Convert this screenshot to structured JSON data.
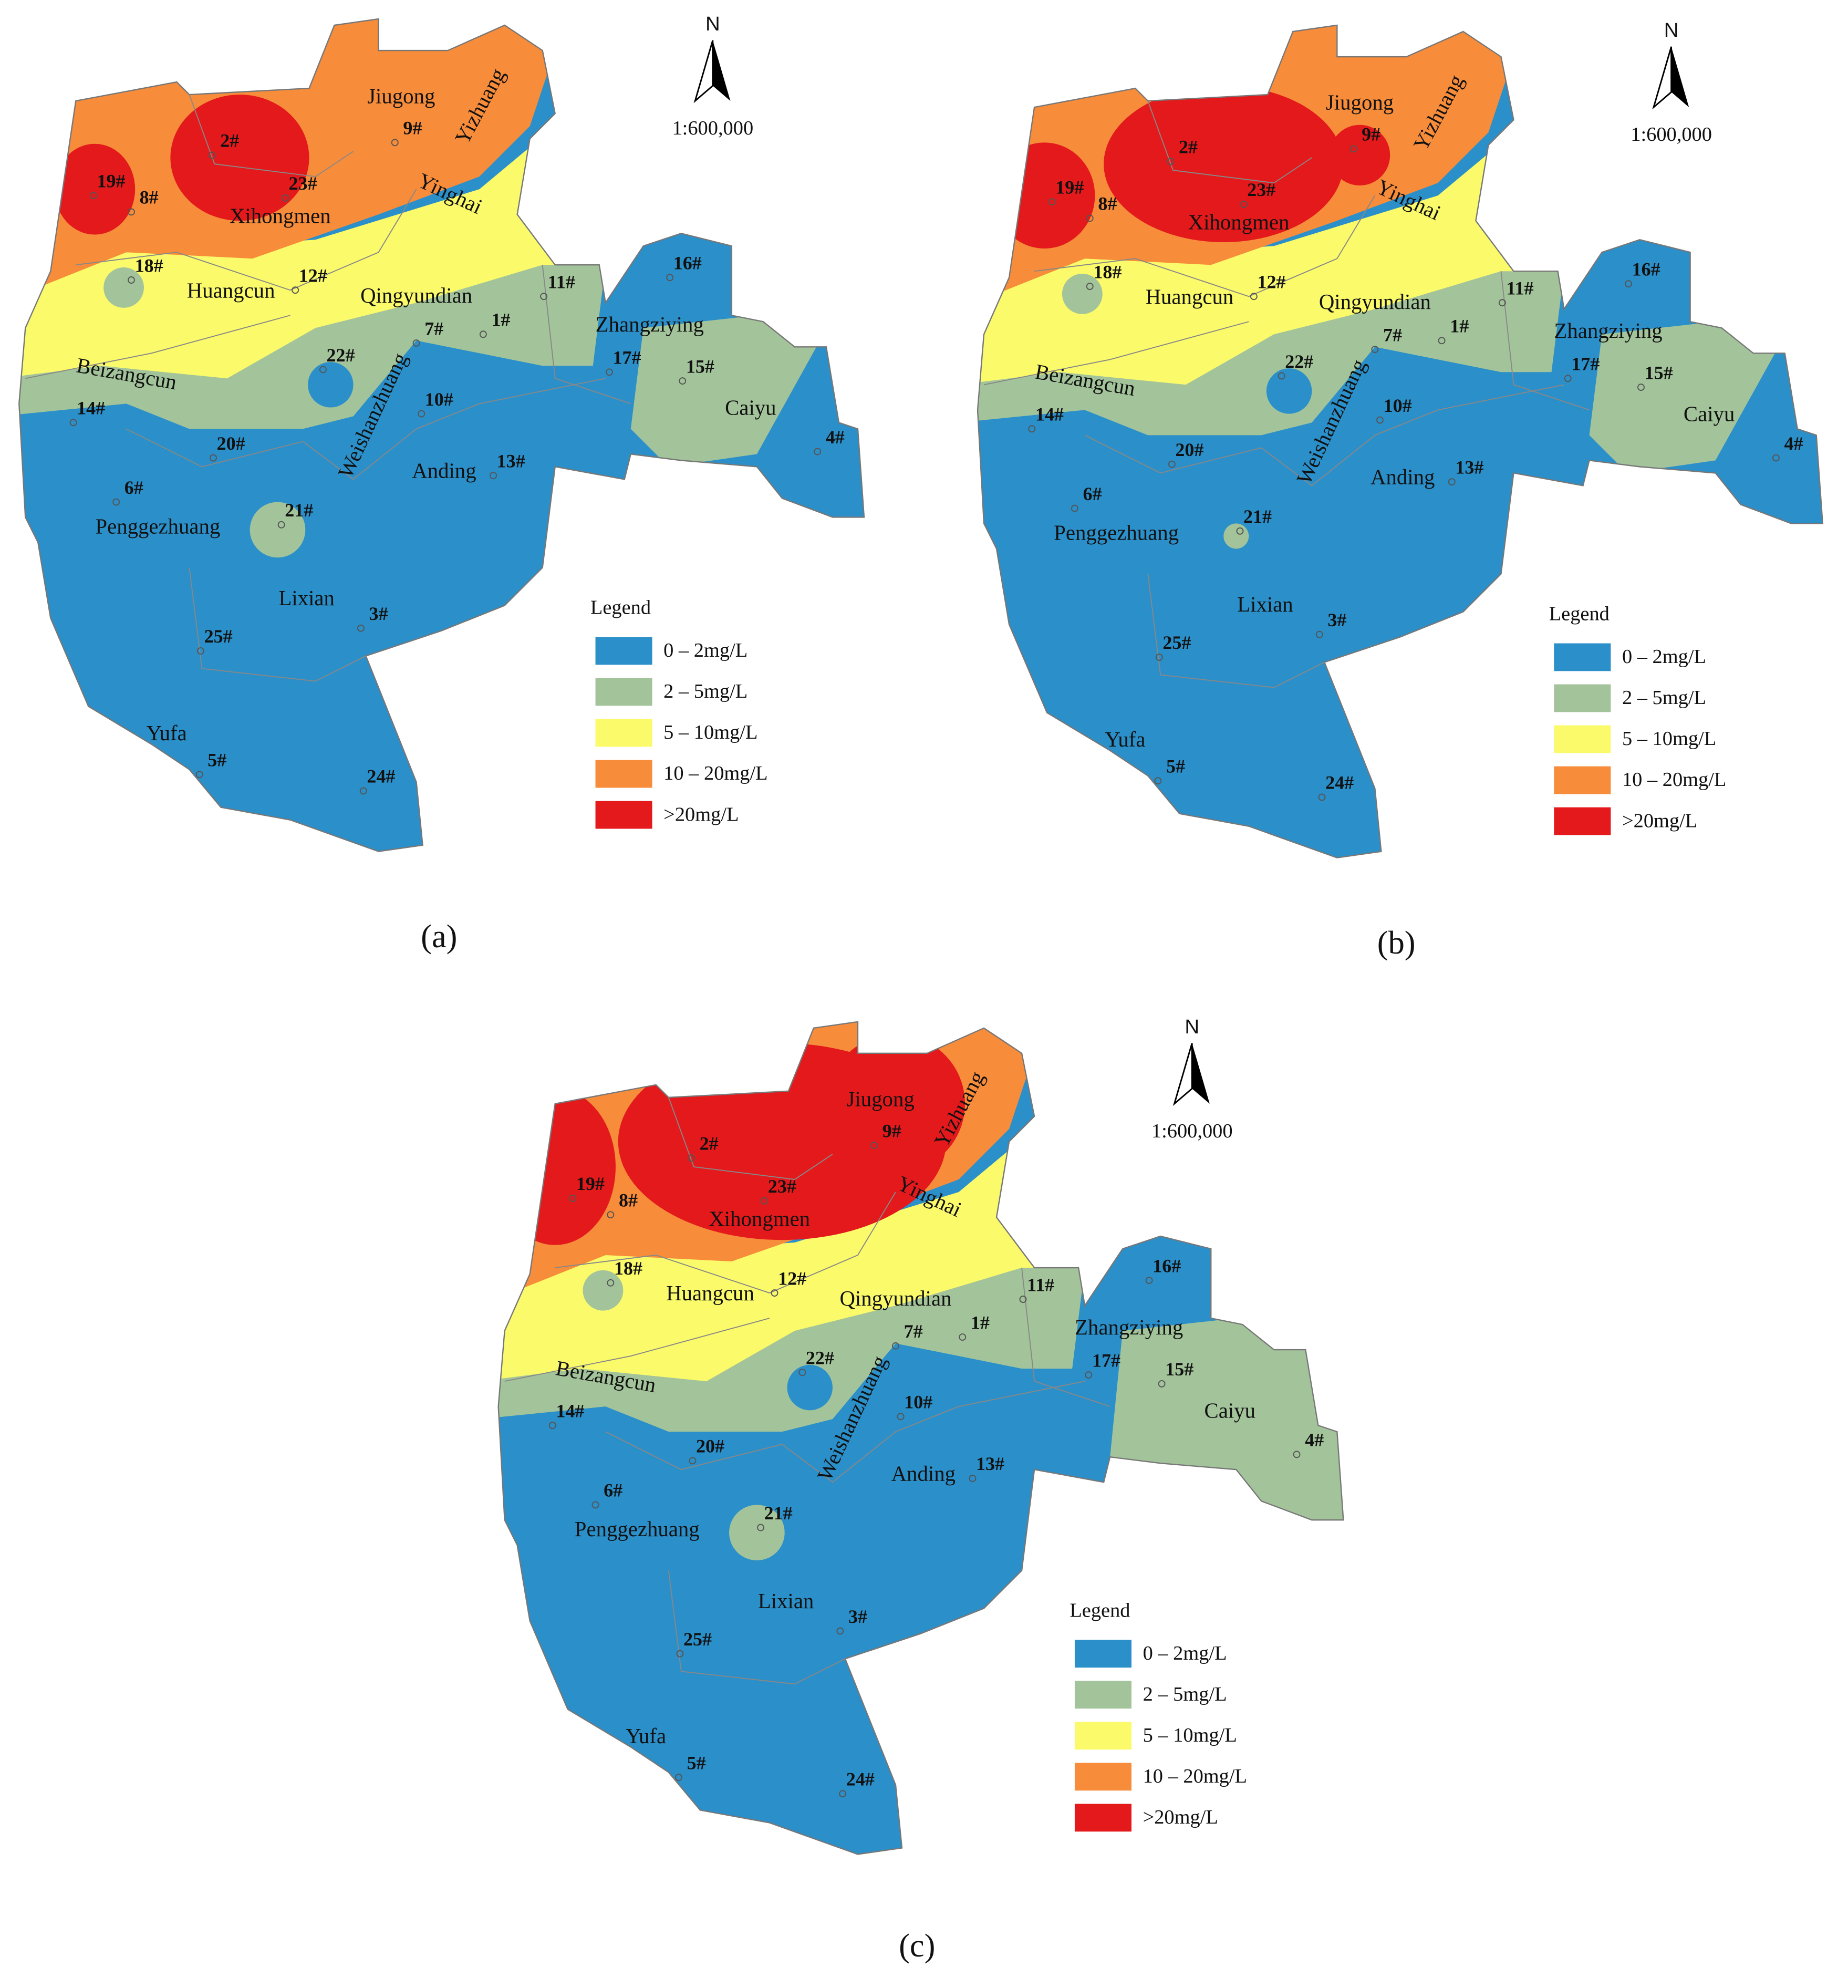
{
  "panels": [
    {
      "caption": "(a)"
    },
    {
      "caption": "(b)"
    },
    {
      "caption": "(c)"
    }
  ],
  "north": "N",
  "scale": "1:600,000",
  "legend": {
    "title": "Legend",
    "items": [
      {
        "label": "0 – 2mg/L",
        "color": "#2b8fc9"
      },
      {
        "label": "2 – 5mg/L",
        "color": "#a3c49a"
      },
      {
        "label": "5 – 10mg/L",
        "color": "#fbfa6a"
      },
      {
        "label": "10 – 20mg/L",
        "color": "#f78c3a"
      },
      {
        "label": ">20mg/L",
        "color": "#e3191c"
      }
    ]
  },
  "places": [
    "Jiugong",
    "Yizhuang",
    "Yinghai",
    "Xihongmen",
    "Huangcun",
    "Qingyundian",
    "Zhangziying",
    "Beizangcun",
    "Caiyu",
    "Weishanzhuang",
    "Anding",
    "Penggezhuang",
    "Lixian",
    "Yufa"
  ],
  "wells": [
    "19#",
    "8#",
    "2#",
    "23#",
    "9#",
    "18#",
    "12#",
    "11#",
    "16#",
    "1#",
    "7#",
    "17#",
    "15#",
    "22#",
    "14#",
    "10#",
    "20#",
    "6#",
    "21#",
    "13#",
    "4#",
    "3#",
    "25#",
    "5#",
    "24#"
  ]
}
